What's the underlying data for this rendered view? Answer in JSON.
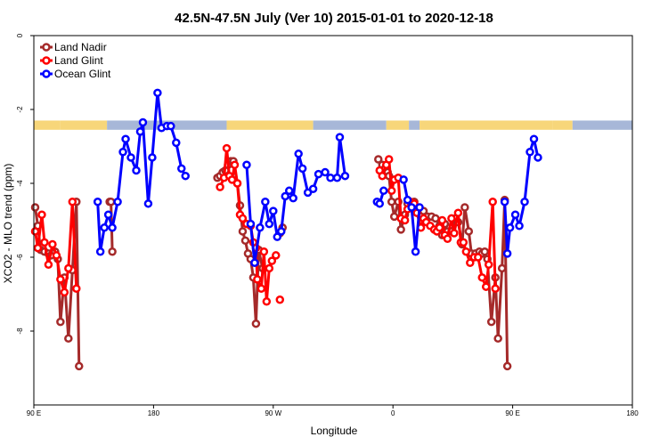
{
  "chart_data": {
    "type": "line",
    "title": "42.5N-47.5N July (Ver 10)   2015-01-01 to 2020-12-18",
    "xlabel": "Longitude",
    "ylabel": "XCO2 - MLO trend (ppm)",
    "xlim": [
      90,
      540
    ],
    "ylim": [
      -10,
      0
    ],
    "x_ticks": [
      {
        "value": 90,
        "label": "90 E"
      },
      {
        "value": 180,
        "label": "180"
      },
      {
        "value": 270,
        "label": "90 W"
      },
      {
        "value": 360,
        "label": "0"
      },
      {
        "value": 450,
        "label": "90 E"
      },
      {
        "value": 540,
        "label": "180"
      }
    ],
    "y_ticks": [
      {
        "value": 0,
        "label": "0"
      },
      {
        "value": -2,
        "label": "-2"
      },
      {
        "value": -4,
        "label": "-4"
      },
      {
        "value": -6,
        "label": "-6"
      },
      {
        "value": -8,
        "label": "-8"
      }
    ],
    "legend_position": "top-left",
    "land_ocean_band": {
      "y_top": -2.3,
      "y_bottom": -2.55,
      "land_color": "#f7d67a",
      "ocean_color": "#a7b7d8",
      "segments": [
        {
          "x0": 90,
          "x1": 110,
          "type": "land"
        },
        {
          "x0": 110,
          "x1": 145,
          "type": "land"
        },
        {
          "x0": 145,
          "x1": 235,
          "type": "ocean"
        },
        {
          "x0": 235,
          "x1": 300,
          "type": "land"
        },
        {
          "x0": 300,
          "x1": 355,
          "type": "ocean"
        },
        {
          "x0": 355,
          "x1": 372,
          "type": "land"
        },
        {
          "x0": 372,
          "x1": 380,
          "type": "ocean"
        },
        {
          "x0": 380,
          "x1": 480,
          "type": "land"
        },
        {
          "x0": 480,
          "x1": 495,
          "type": "land"
        },
        {
          "x0": 495,
          "x1": 540,
          "type": "ocean"
        }
      ]
    },
    "series": [
      {
        "name": "Land Nadir",
        "color": "#a52a2a",
        "segments": [
          [
            [
              91,
              -4.65
            ],
            [
              93,
              -5.15
            ],
            [
              95,
              -5.8
            ],
            [
              98,
              -5.85
            ],
            [
              101,
              -5.9
            ],
            [
              103,
              -5.95
            ],
            [
              106,
              -5.85
            ],
            [
              108,
              -6.05
            ],
            [
              110,
              -7.75
            ],
            [
              113,
              -6.55
            ],
            [
              116,
              -8.2
            ],
            [
              119,
              -6.35
            ],
            [
              122,
              -4.5
            ],
            [
              124,
              -8.95
            ]
          ],
          [
            [
              147,
              -4.5
            ]
          ],
          [
            [
              148,
              -4.5
            ],
            [
              149,
              -5.85
            ]
          ],
          [
            [
              228,
              -3.85
            ],
            [
              230,
              -3.8
            ],
            [
              232,
              -3.7
            ],
            [
              234,
              -3.65
            ],
            [
              236,
              -3.5
            ],
            [
              238,
              -3.4
            ],
            [
              240,
              -3.4
            ],
            [
              243,
              -4.0
            ],
            [
              245,
              -4.6
            ],
            [
              247,
              -5.3
            ],
            [
              249,
              -5.55
            ],
            [
              251,
              -5.9
            ],
            [
              253,
              -6.05
            ],
            [
              255,
              -6.55
            ],
            [
              257,
              -7.8
            ],
            [
              259,
              -5.8
            ],
            [
              262,
              -6.3
            ]
          ],
          [
            [
              275,
              -5.35
            ],
            [
              277,
              -5.2
            ]
          ],
          [
            [
              349,
              -3.35
            ],
            [
              352,
              -3.5
            ],
            [
              354,
              -3.6
            ],
            [
              356,
              -3.7
            ],
            [
              357,
              -3.8
            ],
            [
              359,
              -4.5
            ],
            [
              361,
              -4.9
            ],
            [
              364,
              -4.5
            ],
            [
              366,
              -5.25
            ],
            [
              369,
              -4.85
            ],
            [
              371,
              -4.55
            ],
            [
              374,
              -4.6
            ],
            [
              376,
              -4.5
            ],
            [
              378,
              -4.7
            ],
            [
              381,
              -4.85
            ],
            [
              383,
              -4.75
            ],
            [
              386,
              -4.9
            ],
            [
              389,
              -4.9
            ],
            [
              392,
              -4.95
            ],
            [
              395,
              -5.15
            ],
            [
              397,
              -5.4
            ],
            [
              399,
              -5.1
            ],
            [
              401,
              -5.3
            ],
            [
              404,
              -5.3
            ],
            [
              407,
              -4.95
            ],
            [
              409,
              -5.05
            ],
            [
              412,
              -5.65
            ],
            [
              414,
              -4.65
            ],
            [
              417,
              -5.3
            ],
            [
              419,
              -5.9
            ],
            [
              422,
              -5.9
            ],
            [
              425,
              -5.85
            ],
            [
              427,
              -5.9
            ],
            [
              429,
              -5.85
            ],
            [
              431,
              -6.05
            ],
            [
              434,
              -7.75
            ],
            [
              437,
              -6.55
            ],
            [
              439,
              -8.2
            ],
            [
              442,
              -6.3
            ],
            [
              444,
              -4.45
            ],
            [
              446,
              -8.95
            ]
          ]
        ]
      },
      {
        "name": "Land Glint",
        "color": "#ff0000",
        "segments": [
          [
            [
              91,
              -5.3
            ],
            [
              93,
              -5.75
            ],
            [
              96,
              -4.85
            ],
            [
              98,
              -5.6
            ],
            [
              101,
              -6.2
            ],
            [
              104,
              -5.65
            ],
            [
              107,
              -5.95
            ],
            [
              110,
              -6.6
            ],
            [
              113,
              -6.95
            ],
            [
              116,
              -6.3
            ],
            [
              119,
              -4.5
            ],
            [
              122,
              -6.85
            ]
          ],
          [
            [
              230,
              -4.1
            ],
            [
              233,
              -3.85
            ],
            [
              235,
              -3.05
            ],
            [
              237,
              -3.8
            ],
            [
              239,
              -3.9
            ],
            [
              241,
              -3.5
            ],
            [
              243,
              -4.0
            ],
            [
              245,
              -4.85
            ],
            [
              247,
              -4.95
            ],
            [
              250,
              -5.1
            ],
            [
              253,
              -5.15
            ],
            [
              255,
              -5.6
            ],
            [
              257,
              -5.75
            ],
            [
              258,
              -6.6
            ],
            [
              261,
              -6.85
            ],
            [
              263,
              -5.85
            ],
            [
              265,
              -7.2
            ],
            [
              267,
              -6.3
            ],
            [
              269,
              -6.1
            ],
            [
              272,
              -5.95
            ]
          ],
          [
            [
              275,
              -7.15
            ]
          ],
          [
            [
              350,
              -3.65
            ],
            [
              352,
              -3.8
            ],
            [
              355,
              -3.5
            ],
            [
              357,
              -3.35
            ],
            [
              359,
              -4.2
            ],
            [
              361,
              -3.9
            ],
            [
              364,
              -3.85
            ],
            [
              366,
              -4.95
            ],
            [
              369,
              -5.0
            ],
            [
              371,
              -4.7
            ],
            [
              373,
              -4.5
            ],
            [
              376,
              -4.55
            ],
            [
              378,
              -4.8
            ],
            [
              381,
              -5.2
            ],
            [
              383,
              -4.95
            ],
            [
              385,
              -5.05
            ],
            [
              388,
              -5.15
            ],
            [
              391,
              -5.25
            ],
            [
              393,
              -5.3
            ],
            [
              395,
              -5.2
            ],
            [
              397,
              -5.0
            ],
            [
              399,
              -5.4
            ],
            [
              401,
              -5.5
            ],
            [
              404,
              -4.95
            ],
            [
              406,
              -5.35
            ],
            [
              409,
              -4.8
            ],
            [
              411,
              -5.6
            ],
            [
              413,
              -5.6
            ],
            [
              415,
              -5.85
            ],
            [
              418,
              -6.15
            ],
            [
              421,
              -6.0
            ],
            [
              424,
              -6.0
            ],
            [
              427,
              -6.55
            ],
            [
              430,
              -6.8
            ],
            [
              432,
              -6.2
            ],
            [
              435,
              -4.5
            ],
            [
              437,
              -6.85
            ]
          ]
        ]
      },
      {
        "name": "Ocean Glint",
        "color": "#0000ff",
        "segments": [
          [
            [
              138,
              -4.5
            ],
            [
              140,
              -5.85
            ],
            [
              143,
              -5.2
            ],
            [
              146,
              -4.85
            ],
            [
              149,
              -5.2
            ],
            [
              153,
              -4.5
            ],
            [
              157,
              -3.15
            ],
            [
              159,
              -2.8
            ],
            [
              163,
              -3.3
            ],
            [
              167,
              -3.65
            ],
            [
              170,
              -2.6
            ],
            [
              172,
              -2.35
            ],
            [
              176,
              -4.55
            ],
            [
              179,
              -3.3
            ],
            [
              183,
              -1.55
            ],
            [
              186,
              -2.5
            ],
            [
              190,
              -2.45
            ],
            [
              193,
              -2.45
            ],
            [
              197,
              -2.9
            ],
            [
              201,
              -3.6
            ],
            [
              204,
              -3.8
            ]
          ],
          [
            [
              250,
              -3.5
            ],
            [
              253,
              -5.1
            ],
            [
              256,
              -6.15
            ],
            [
              260,
              -5.2
            ],
            [
              264,
              -4.5
            ],
            [
              267,
              -5.1
            ],
            [
              270,
              -4.75
            ],
            [
              273,
              -5.45
            ],
            [
              276,
              -5.3
            ],
            [
              279,
              -4.35
            ],
            [
              282,
              -4.2
            ],
            [
              285,
              -4.4
            ],
            [
              289,
              -3.2
            ],
            [
              292,
              -3.6
            ],
            [
              296,
              -4.25
            ],
            [
              300,
              -4.15
            ],
            [
              304,
              -3.75
            ],
            [
              309,
              -3.7
            ],
            [
              313,
              -3.85
            ],
            [
              318,
              -3.85
            ],
            [
              320,
              -2.75
            ],
            [
              324,
              -3.8
            ]
          ],
          [
            [
              348,
              -4.5
            ],
            [
              350,
              -4.55
            ],
            [
              353,
              -4.2
            ]
          ],
          [
            [
              368,
              -3.9
            ],
            [
              371,
              -4.45
            ],
            [
              374,
              -4.65
            ],
            [
              377,
              -5.85
            ],
            [
              380,
              -4.65
            ]
          ],
          [
            [
              444,
              -4.5
            ],
            [
              446,
              -5.9
            ],
            [
              448,
              -5.2
            ],
            [
              452,
              -4.85
            ],
            [
              455,
              -5.15
            ],
            [
              459,
              -4.5
            ],
            [
              463,
              -3.15
            ],
            [
              466,
              -2.8
            ],
            [
              469,
              -3.3
            ]
          ]
        ]
      }
    ]
  }
}
